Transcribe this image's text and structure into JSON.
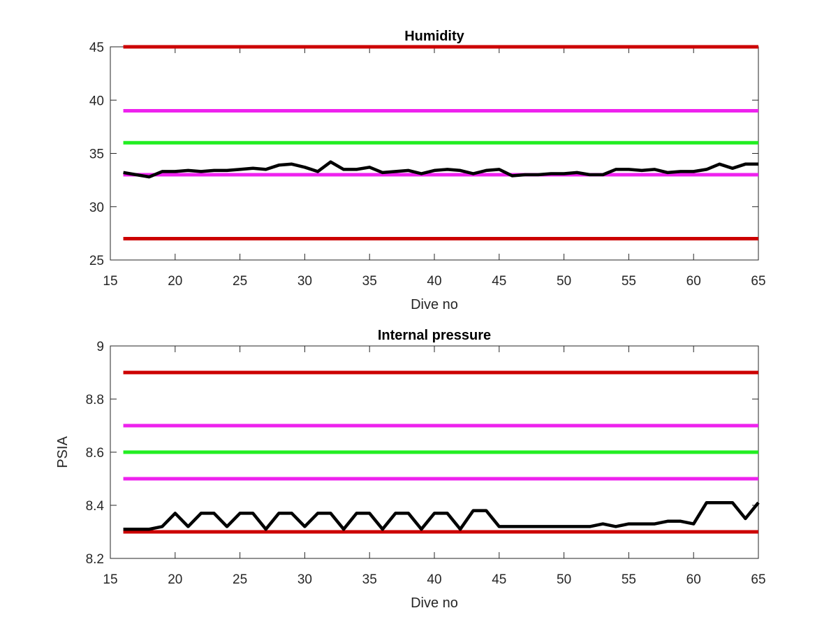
{
  "colors": {
    "red": "#cc0000",
    "magenta": "#ee22ee",
    "green": "#22ee22",
    "series": "#000000",
    "axis": "#262626"
  },
  "chart_data": [
    {
      "type": "line",
      "title": "Humidity",
      "xlabel": "Dive no",
      "ylabel": "",
      "xlim": [
        15,
        65
      ],
      "ylim": [
        25,
        45
      ],
      "xticks": [
        15,
        20,
        25,
        30,
        35,
        40,
        45,
        50,
        55,
        60,
        65
      ],
      "yticks": [
        25,
        30,
        35,
        40,
        45
      ],
      "grid": false,
      "reference_lines": [
        {
          "color": "red",
          "y": 45
        },
        {
          "color": "magenta",
          "y": 39
        },
        {
          "color": "green",
          "y": 36
        },
        {
          "color": "magenta",
          "y": 33
        },
        {
          "color": "red",
          "y": 27
        }
      ],
      "series": [
        {
          "color": "black",
          "x": [
            16,
            17,
            18,
            19,
            20,
            21,
            22,
            23,
            24,
            25,
            26,
            27,
            28,
            29,
            30,
            31,
            32,
            33,
            34,
            35,
            36,
            37,
            38,
            39,
            40,
            41,
            42,
            43,
            44,
            45,
            46,
            47,
            48,
            49,
            50,
            51,
            52,
            53,
            54,
            55,
            56,
            57,
            58,
            59,
            60,
            61,
            62,
            63,
            64,
            65
          ],
          "y": [
            33.2,
            33.0,
            32.8,
            33.3,
            33.3,
            33.4,
            33.3,
            33.4,
            33.4,
            33.5,
            33.6,
            33.5,
            33.9,
            34.0,
            33.7,
            33.3,
            34.2,
            33.5,
            33.5,
            33.7,
            33.2,
            33.3,
            33.4,
            33.1,
            33.4,
            33.5,
            33.4,
            33.1,
            33.4,
            33.5,
            32.9,
            33.0,
            33.0,
            33.1,
            33.1,
            33.2,
            33.0,
            33.0,
            33.5,
            33.5,
            33.4,
            33.5,
            33.2,
            33.3,
            33.3,
            33.5,
            34.0,
            33.6,
            34.0,
            34.0
          ]
        }
      ]
    },
    {
      "type": "line",
      "title": "Internal pressure",
      "xlabel": "Dive no",
      "ylabel": "PSIA",
      "xlim": [
        15,
        65
      ],
      "ylim": [
        8.2,
        9
      ],
      "xticks": [
        15,
        20,
        25,
        30,
        35,
        40,
        45,
        50,
        55,
        60,
        65
      ],
      "yticks": [
        8.2,
        8.4,
        8.6,
        8.8,
        9
      ],
      "grid": false,
      "reference_lines": [
        {
          "color": "red",
          "y": 8.9
        },
        {
          "color": "magenta",
          "y": 8.7
        },
        {
          "color": "green",
          "y": 8.6
        },
        {
          "color": "magenta",
          "y": 8.5
        },
        {
          "color": "red",
          "y": 8.3
        }
      ],
      "series": [
        {
          "color": "black",
          "x": [
            16,
            17,
            18,
            19,
            20,
            21,
            22,
            23,
            24,
            25,
            26,
            27,
            28,
            29,
            30,
            31,
            32,
            33,
            34,
            35,
            36,
            37,
            38,
            39,
            40,
            41,
            42,
            43,
            44,
            45,
            46,
            47,
            48,
            49,
            50,
            51,
            52,
            53,
            54,
            55,
            56,
            57,
            58,
            59,
            60,
            61,
            62,
            63,
            64,
            65
          ],
          "y": [
            8.31,
            8.31,
            8.31,
            8.32,
            8.37,
            8.32,
            8.37,
            8.37,
            8.32,
            8.37,
            8.37,
            8.31,
            8.37,
            8.37,
            8.32,
            8.37,
            8.37,
            8.31,
            8.37,
            8.37,
            8.31,
            8.37,
            8.37,
            8.31,
            8.37,
            8.37,
            8.31,
            8.38,
            8.38,
            8.32,
            8.32,
            8.32,
            8.32,
            8.32,
            8.32,
            8.32,
            8.32,
            8.33,
            8.32,
            8.33,
            8.33,
            8.33,
            8.34,
            8.34,
            8.33,
            8.41,
            8.41,
            8.41,
            8.35,
            8.41
          ]
        }
      ]
    }
  ]
}
